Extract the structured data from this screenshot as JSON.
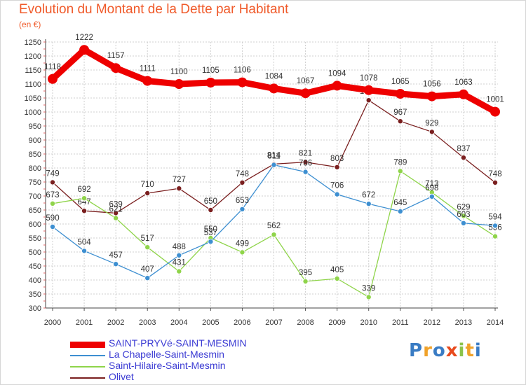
{
  "title": "Evolution du Montant de la Dette par Habitant",
  "unit": "(en €)",
  "logo": {
    "text": "Proxiti",
    "colors": [
      "#3a7cc4",
      "#f0a22a",
      "#3a7cc4",
      "#e84a1d",
      "#8bc34a",
      "#f0a22a",
      "#3a7cc4"
    ]
  },
  "chart_data": {
    "type": "line",
    "categories": [
      "2000",
      "2001",
      "2002",
      "2003",
      "2004",
      "2005",
      "2006",
      "2007",
      "2008",
      "2009",
      "2010",
      "2011",
      "2012",
      "2013",
      "2014"
    ],
    "ylim": [
      300,
      1250
    ],
    "yticks": [
      300,
      350,
      400,
      450,
      500,
      550,
      600,
      650,
      700,
      750,
      800,
      850,
      900,
      950,
      1000,
      1050,
      1100,
      1150,
      1200,
      1250
    ],
    "grid": true,
    "legend": "bottom-left",
    "series": [
      {
        "name": "SAINT-PRYVé-SAINT-MESMIN",
        "color": "#ee0000",
        "values": [
          1118,
          1222,
          1157,
          1111,
          1100,
          1105,
          1106,
          1084,
          1067,
          1094,
          1078,
          1065,
          1056,
          1063,
          1001
        ]
      },
      {
        "name": "La Chapelle-Saint-Mesmin",
        "color": "#3d8fd1",
        "values": [
          590,
          504,
          457,
          407,
          488,
          537,
          653,
          811,
          786,
          706,
          672,
          645,
          698,
          603,
          594
        ]
      },
      {
        "name": "Saint-Hilaire-Saint-Mesmin",
        "color": "#8fd44a",
        "values": [
          673,
          692,
          621,
          517,
          431,
          550,
          499,
          562,
          395,
          405,
          339,
          789,
          713,
          629,
          556
        ]
      },
      {
        "name": "Olivet",
        "color": "#7a1f1f",
        "values": [
          749,
          647,
          639,
          710,
          727,
          650,
          748,
          814,
          821,
          803,
          1042,
          967,
          929,
          837,
          748
        ]
      }
    ]
  }
}
